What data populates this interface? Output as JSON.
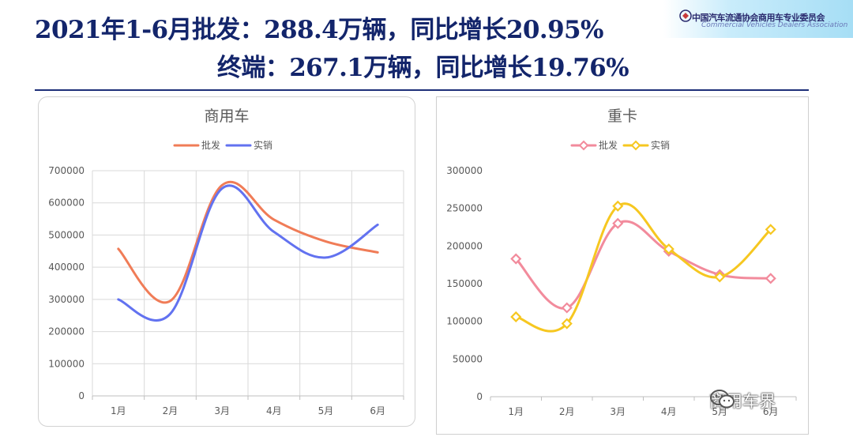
{
  "header": {
    "line1": "2021年1-6月批发：288.4万辆，同比增长20.95%",
    "line2": "终端：267.1万辆，同比增长19.76%"
  },
  "logo": {
    "name_cn": "中国汽车流通协会商用车专业委员会",
    "name_en": "Commercial Vehicles Dealers Association"
  },
  "watermark": {
    "text": "商用车界",
    "icon": "wechat-icon"
  },
  "colors": {
    "title": "#13256b",
    "left_wholesale": "#f07c57",
    "left_retail": "#6272f0",
    "right_wholesale": "#f28b9c",
    "right_retail": "#f6c720"
  },
  "chart_data": [
    {
      "type": "line",
      "title": "商用车",
      "categories": [
        "1月",
        "2月",
        "3月",
        "4月",
        "5月",
        "6月"
      ],
      "series": [
        {
          "name": "批发",
          "values": [
            457000,
            295000,
            655000,
            548000,
            480000,
            446000
          ]
        },
        {
          "name": "实销",
          "values": [
            300000,
            255000,
            645000,
            510000,
            430000,
            532000
          ]
        }
      ],
      "ylim": [
        0,
        700000
      ],
      "yticks": [
        "0",
        "100000",
        "200000",
        "300000",
        "400000",
        "500000",
        "600000",
        "700000"
      ],
      "smooth": true,
      "markers": false,
      "grid": true,
      "vertical_grid": true,
      "legend": "top"
    },
    {
      "type": "line",
      "title": "重卡",
      "categories": [
        "1月",
        "2月",
        "3月",
        "4月",
        "5月",
        "6月"
      ],
      "series": [
        {
          "name": "批发",
          "values": [
            183000,
            118000,
            230000,
            193000,
            162000,
            157000
          ]
        },
        {
          "name": "实销",
          "values": [
            106000,
            97000,
            253000,
            196000,
            159000,
            222000
          ]
        }
      ],
      "ylim": [
        0,
        300000
      ],
      "yticks": [
        "0",
        "50000",
        "100000",
        "150000",
        "200000",
        "250000",
        "300000"
      ],
      "smooth": true,
      "markers": "diamond",
      "grid": false,
      "legend": "top"
    }
  ]
}
